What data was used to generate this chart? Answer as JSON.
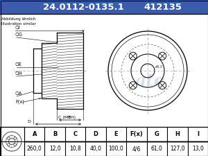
{
  "title_part": "24.0112-0135.1",
  "title_code": "412135",
  "title_bg": "#3a5daa",
  "title_fg": "#ffffff",
  "subtitle_text": "Abbildung ähnlich\nIllustration similar",
  "table_header_display": [
    "A",
    "B",
    "C",
    "D",
    "E",
    "F(x)",
    "G",
    "H",
    "I"
  ],
  "table_values": [
    "260,0",
    "12,0",
    "10,8",
    "40,0",
    "100,0",
    "4/6",
    "61,0",
    "127,0",
    "13,0"
  ],
  "bg_color": "#ffffff",
  "border_color": "#000000"
}
